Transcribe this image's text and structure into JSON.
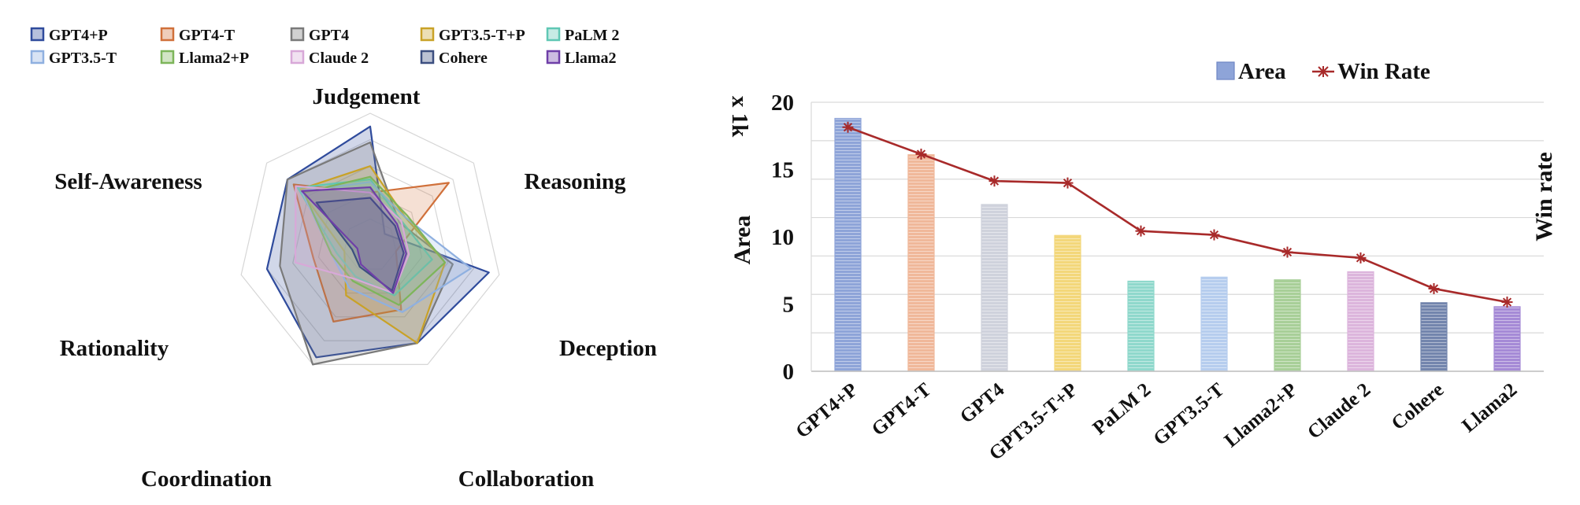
{
  "chart_data": [
    {
      "type": "radar",
      "axes": [
        "Judgement",
        "Reasoning",
        "Deception",
        "Collaboration",
        "Coordination",
        "Rationality",
        "Self-Awareness"
      ],
      "range": [
        0,
        1
      ],
      "series": [
        {
          "name": "GPT4+P",
          "color": "#2f4b9c",
          "values": [
            0.9,
            0.14,
            0.92,
            0.82,
            0.94,
            0.8,
            0.8
          ]
        },
        {
          "name": "GPT4-T",
          "color": "#d0703a",
          "values": [
            0.4,
            0.76,
            0.2,
            0.54,
            0.64,
            0.44,
            0.74
          ]
        },
        {
          "name": "GPT4",
          "color": "#7a7a7a",
          "values": [
            0.78,
            0.28,
            0.64,
            0.82,
            1.0,
            0.7,
            0.8
          ]
        },
        {
          "name": "GPT3.5-T+P",
          "color": "#c9a227",
          "values": [
            0.6,
            0.34,
            0.58,
            0.82,
            0.42,
            0.2,
            0.68
          ]
        },
        {
          "name": "PaLM 2",
          "color": "#5fc7b4",
          "values": [
            0.5,
            0.3,
            0.48,
            0.42,
            0.26,
            0.26,
            0.7
          ]
        },
        {
          "name": "GPT3.5-T",
          "color": "#8fb0e0",
          "values": [
            0.48,
            0.34,
            0.78,
            0.56,
            0.36,
            0.3,
            0.66
          ]
        },
        {
          "name": "Llama2+P",
          "color": "#7db55a",
          "values": [
            0.52,
            0.36,
            0.58,
            0.5,
            0.3,
            0.3,
            0.64
          ]
        },
        {
          "name": "Claude 2",
          "color": "#d8a8d8",
          "values": [
            0.4,
            0.3,
            0.3,
            0.4,
            0.28,
            0.58,
            0.72
          ]
        },
        {
          "name": "Cohere",
          "color": "#3c4f80",
          "values": [
            0.36,
            0.24,
            0.26,
            0.38,
            0.18,
            0.14,
            0.52
          ]
        },
        {
          "name": "Llama2",
          "color": "#6f3fa8",
          "values": [
            0.44,
            0.26,
            0.28,
            0.4,
            0.16,
            0.1,
            0.66
          ]
        }
      ]
    },
    {
      "type": "bar+line",
      "categories": [
        "GPT4+P",
        "GPT4-T",
        "GPT4",
        "GPT3.5-T+P",
        "PaLM 2",
        "GPT3.5-T",
        "Llama2+P",
        "Claude 2",
        "Cohere",
        "Llama2"
      ],
      "bar_colors": [
        "#8ea4d8",
        "#f0b89a",
        "#cfd2dc",
        "#f3d77a",
        "#8fd8cc",
        "#b6cdee",
        "#a8cf98",
        "#dcb5dc",
        "#7385ad",
        "#a58ad6"
      ],
      "series": [
        {
          "name": "Area",
          "type": "bar",
          "axis": "left",
          "values": [
            18.8,
            16.1,
            12.4,
            10.1,
            6.7,
            7.0,
            6.8,
            7.4,
            5.1,
            4.8
          ]
        },
        {
          "name": "Win Rate",
          "type": "line",
          "axis": "right",
          "color": "#a82a2a",
          "values": [
            63.5,
            56.5,
            49.5,
            49.0,
            36.5,
            35.5,
            31.0,
            29.5,
            21.5,
            18.0
          ]
        }
      ],
      "ylabel_left": "Area",
      "ylabel_right": "Win rate",
      "left_unit": "x 1k",
      "ylim_left": [
        0,
        20
      ],
      "ylim_right": [
        0,
        70
      ],
      "yticks_left": [
        "0",
        "5",
        "10",
        "15",
        "20"
      ],
      "yticks_right": [
        "0",
        "10",
        "20",
        "30",
        "40",
        "50",
        "60",
        "70"
      ],
      "legend": [
        "Area",
        "Win Rate"
      ],
      "grid": true
    }
  ]
}
